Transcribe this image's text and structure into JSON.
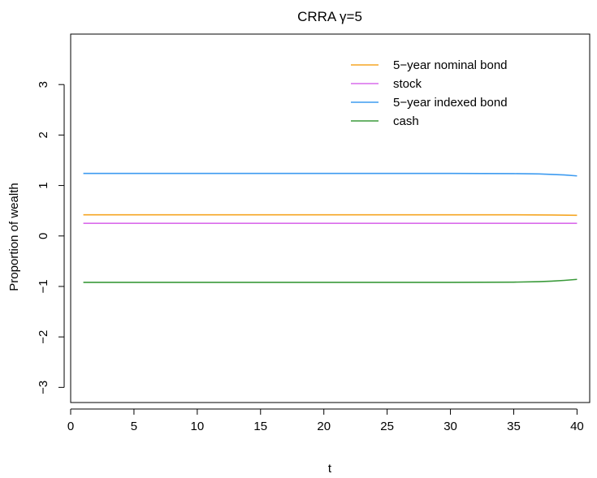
{
  "chart_data": {
    "type": "line",
    "title": "CRRA γ=5",
    "xlabel": "t",
    "ylabel": "Proportion of wealth",
    "xlim": [
      0,
      41
    ],
    "ylim": [
      -3.3,
      4.0
    ],
    "x_ticks": [
      0,
      5,
      10,
      15,
      20,
      25,
      30,
      35,
      40
    ],
    "y_ticks": [
      -3,
      -2,
      -1,
      0,
      1,
      2,
      3
    ],
    "grid": false,
    "legend_position": "top-right",
    "series": [
      {
        "name": "5−year nominal bond",
        "color": "#F5A623",
        "x": [
          1,
          10,
          20,
          30,
          35,
          38,
          40
        ],
        "y": [
          0.42,
          0.42,
          0.42,
          0.42,
          0.42,
          0.415,
          0.41
        ]
      },
      {
        "name": "stock",
        "color": "#D96BEB",
        "x": [
          1,
          10,
          20,
          30,
          35,
          38,
          40
        ],
        "y": [
          0.25,
          0.25,
          0.25,
          0.25,
          0.25,
          0.25,
          0.25
        ]
      },
      {
        "name": "5−year indexed bond",
        "color": "#3D9BF0",
        "x": [
          1,
          10,
          20,
          30,
          35,
          37,
          38,
          39,
          40
        ],
        "y": [
          1.24,
          1.24,
          1.24,
          1.24,
          1.235,
          1.23,
          1.22,
          1.21,
          1.19
        ]
      },
      {
        "name": "cash",
        "color": "#3A9A3A",
        "x": [
          1,
          10,
          20,
          30,
          35,
          37,
          38,
          39,
          40
        ],
        "y": [
          -0.92,
          -0.92,
          -0.92,
          -0.92,
          -0.915,
          -0.905,
          -0.895,
          -0.88,
          -0.86
        ]
      }
    ]
  }
}
